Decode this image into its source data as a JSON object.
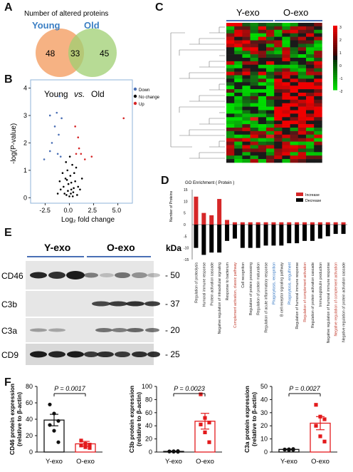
{
  "panels": {
    "a": "A",
    "b": "B",
    "c": "C",
    "d": "D",
    "e": "E",
    "f": "F"
  },
  "venn": {
    "title": "Number of altered proteins",
    "left_label": "Young",
    "right_label": "Old",
    "left_only": "48",
    "overlap": "33",
    "right_only": "45",
    "left_color": "#f4a56d",
    "right_color": "#9fcf72",
    "label_color": "#3b7fc4"
  },
  "volcano": {
    "title_left": "Young",
    "title_vs": "vs.",
    "title_right": "Old",
    "xlabel": "Log₂ fold change",
    "ylabel": "-log(P-value)",
    "xticks": [
      "-2.5",
      "0.0",
      "2.5",
      "5.0"
    ],
    "yticks": [
      "0",
      "1",
      "2",
      "3",
      "4"
    ],
    "legend": [
      {
        "label": "Down",
        "color": "#4a6fb5"
      },
      {
        "label": "No change",
        "color": "#000000"
      },
      {
        "label": "Up",
        "color": "#d62728"
      }
    ]
  },
  "heatmap": {
    "group_left": "Y-exo",
    "group_right": "O-exo",
    "scale_ticks": [
      "3",
      "2",
      "1",
      "0",
      "-1",
      "-2"
    ],
    "colors": {
      "high": "#e31a1c",
      "mid": "#1a1a1a",
      "low": "#33cc33"
    }
  },
  "go": {
    "title": "GO Enrichment ( Protein )",
    "ylabel": "Number of Proteins",
    "legend": [
      {
        "label": "Increase",
        "color": "#d62728"
      },
      {
        "label": "Decrease",
        "color": "#000000"
      }
    ],
    "yticks": [
      "15",
      "10",
      "5",
      "0",
      "-5",
      "-10",
      "-15"
    ]
  },
  "blot": {
    "y_label": "Y-exo",
    "o_label": "O-exo",
    "kda_label": "kDa",
    "rows": [
      {
        "name": "CD46",
        "marker": "50"
      },
      {
        "name": "C3b",
        "marker": "37"
      },
      {
        "name": "C3a",
        "marker": "20"
      },
      {
        "name": "CD9",
        "marker": "25"
      }
    ]
  },
  "chart_data": [
    {
      "type": "scatter",
      "title": "Young vs. Old",
      "xlabel": "Log₂ fold change",
      "ylabel": "-log(P-value)",
      "xlim": [
        -4,
        6.5
      ],
      "ylim": [
        -0.2,
        4.3
      ],
      "series": [
        {
          "name": "Down",
          "points": [
            [
              -2.0,
              3.0
            ],
            [
              -1.0,
              3.7
            ],
            [
              -1.5,
              2.6
            ],
            [
              -2.0,
              1.7
            ],
            [
              -1.2,
              1.6
            ],
            [
              -0.8,
              2.9
            ],
            [
              -1.8,
              2.0
            ],
            [
              -0.9,
              1.5
            ],
            [
              -1.3,
              3.1
            ],
            [
              -2.6,
              1.4
            ],
            [
              -1.1,
              2.3
            ]
          ]
        },
        {
          "name": "No change",
          "points": [
            [
              -0.3,
              0.1
            ],
            [
              0.2,
              0.3
            ],
            [
              -0.1,
              0.5
            ],
            [
              0.4,
              0.2
            ],
            [
              -0.6,
              0.4
            ],
            [
              0.1,
              0.8
            ],
            [
              -0.2,
              1.0
            ],
            [
              0.6,
              0.6
            ],
            [
              0.8,
              0.1
            ],
            [
              -0.9,
              0.3
            ],
            [
              0.3,
              1.2
            ],
            [
              -0.4,
              0.7
            ],
            [
              0.0,
              0.05
            ],
            [
              0.5,
              0.9
            ],
            [
              -0.7,
              0.9
            ],
            [
              0.9,
              0.4
            ],
            [
              -0.5,
              0.15
            ],
            [
              0.2,
              0.55
            ],
            [
              -0.15,
              0.25
            ],
            [
              0.7,
              1.1
            ],
            [
              1.1,
              0.3
            ],
            [
              -1.0,
              0.6
            ],
            [
              0.35,
              0.05
            ],
            [
              -0.35,
              1.3
            ],
            [
              1.3,
              0.7
            ],
            [
              -1.2,
              0.15
            ],
            [
              0.05,
              1.5
            ],
            [
              0.45,
              0.35
            ],
            [
              -0.25,
              0.65
            ],
            [
              0.15,
              0.15
            ]
          ]
        },
        {
          "name": "Up",
          "points": [
            [
              0.7,
              1.6
            ],
            [
              1.2,
              1.6
            ],
            [
              0.9,
              2.2
            ],
            [
              1.0,
              1.8
            ],
            [
              2.3,
              1.5
            ],
            [
              1.6,
              1.4
            ],
            [
              5.6,
              2.9
            ],
            [
              0.6,
              2.6
            ]
          ]
        }
      ]
    },
    {
      "type": "bar",
      "title": "GO Enrichment ( Protein )",
      "ylabel": "Number of Proteins",
      "ylim": [
        -15,
        15
      ],
      "categories": [
        "Regulation of proteolysis",
        "Humoral immune response",
        "Protein activation cascade",
        "Negative regulation of intracellular signaling",
        "Response to bacterium",
        "Complement activation, classic pathway",
        "Cell recognition",
        "Regulation of protein processing",
        "Regulation of protein maturation",
        "Regulation of acute inflammatory response",
        "Phagocytosis, recognition",
        "B cell receptor signaling pathway",
        "Phagocytosis, engulfment",
        "Regulation of humoral immune response",
        "Regulation of complement activation",
        "Regulation of protein activation cascade",
        "Immunoglobulin production",
        "Negative regulation of humoral immune response",
        "Negative regulation of complement activation",
        "Negative regulation of protein activation cascade"
      ],
      "series": [
        {
          "name": "Increase",
          "values": [
            12,
            5,
            4,
            11,
            2,
            1,
            1,
            1,
            1,
            1,
            1,
            1,
            1,
            1,
            1,
            1,
            1,
            1,
            1,
            1
          ]
        },
        {
          "name": "Decrease",
          "values": [
            -10,
            -13,
            -12,
            -12,
            -7,
            -6,
            -10,
            -10,
            -10,
            -9,
            -9,
            -9,
            -8,
            -8,
            -7,
            -7,
            -6,
            -5,
            -4,
            -4
          ]
        }
      ]
    },
    {
      "type": "bar",
      "title": "",
      "ylabel": "CD46 protein expression (relative to β-actin)",
      "categories": [
        "Y-exo",
        "O-exo"
      ],
      "values": [
        39,
        10
      ],
      "errors": [
        7,
        3
      ],
      "ylim": [
        0,
        80
      ],
      "yticks": [
        "0",
        "20",
        "40",
        "60",
        "80"
      ],
      "pvalue": "P = 0.0017",
      "points": [
        [
          58,
          47,
          38,
          33,
          26,
          12
        ],
        [
          14,
          10,
          9,
          8,
          6,
          5
        ]
      ],
      "color": "#e31a1c"
    },
    {
      "type": "bar",
      "title": "",
      "ylabel": "C3b protein expression (relative to β-actin)",
      "categories": [
        "Y-exo",
        "O-exo"
      ],
      "values": [
        1,
        47
      ],
      "errors": [
        0.5,
        12
      ],
      "ylim": [
        0,
        100
      ],
      "yticks": [
        "0",
        "20",
        "40",
        "60",
        "80",
        "100"
      ],
      "pvalue": "P = 0.0023",
      "points": [
        [
          1,
          0.5,
          1.5,
          0.8,
          1.2,
          0.3
        ],
        [
          88,
          52,
          45,
          42,
          30,
          15
        ]
      ],
      "color": "#e31a1c"
    },
    {
      "type": "bar",
      "title": "",
      "ylabel": "C3a protein expression (relative to β-actin)",
      "categories": [
        "Y-exo",
        "O-exo"
      ],
      "values": [
        2,
        22
      ],
      "errors": [
        0.3,
        5
      ],
      "ylim": [
        0,
        50
      ],
      "yticks": [
        "0",
        "10",
        "20",
        "30",
        "40",
        "50"
      ],
      "pvalue": "P = 0.0027",
      "points": [
        [
          2,
          1.5,
          2.3,
          1.8,
          2.1,
          1.6
        ],
        [
          36,
          27,
          25,
          20,
          12,
          8
        ]
      ],
      "color": "#e31a1c"
    }
  ]
}
